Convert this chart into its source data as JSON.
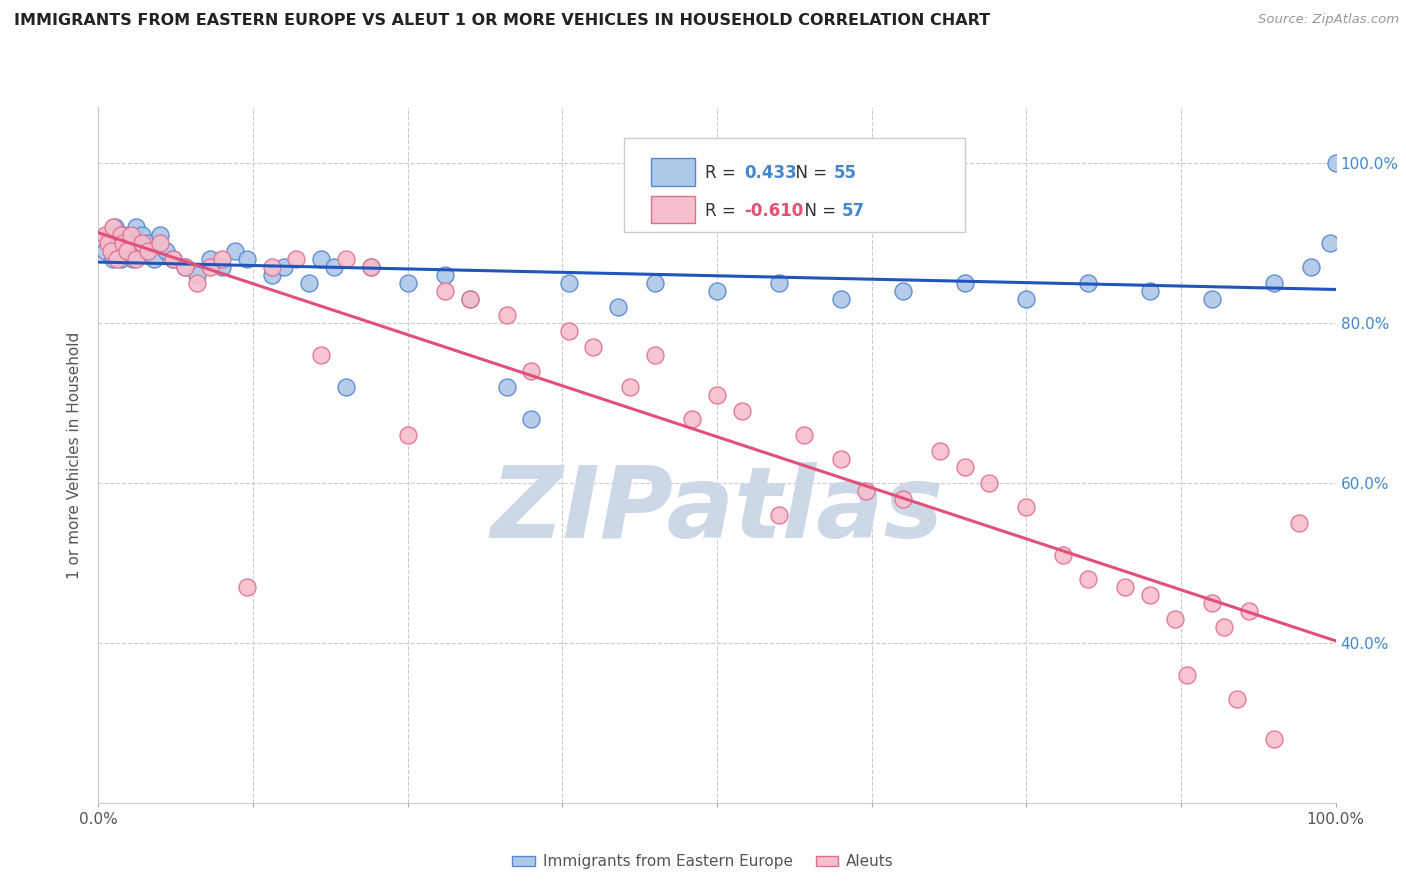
{
  "title": "IMMIGRANTS FROM EASTERN EUROPE VS ALEUT 1 OR MORE VEHICLES IN HOUSEHOLD CORRELATION CHART",
  "source": "Source: ZipAtlas.com",
  "ylabel": "1 or more Vehicles in Household",
  "legend_blue_r": "0.433",
  "legend_blue_n": "55",
  "legend_pink_r": "-0.610",
  "legend_pink_n": "57",
  "blue_color": "#adc8e8",
  "blue_edge_color": "#5588cc",
  "blue_line_color": "#2255bb",
  "pink_color": "#f5bfcc",
  "pink_edge_color": "#e07090",
  "pink_line_color": "#e0507a",
  "background_color": "#ffffff",
  "watermark_color": "#ccd8e8",
  "right_yticks": [
    40,
    60,
    80,
    100
  ],
  "right_ytick_labels": [
    "40.0%",
    "60.0%",
    "80.0%",
    "100.0%"
  ],
  "ylim_min": 20,
  "ylim_max": 107,
  "blue_x": [
    0.5,
    0.8,
    1.0,
    1.2,
    1.3,
    1.5,
    1.7,
    1.8,
    2.0,
    2.2,
    2.5,
    2.8,
    3.0,
    3.2,
    3.5,
    3.8,
    4.0,
    4.5,
    5.0,
    5.5,
    6.0,
    7.0,
    8.0,
    9.0,
    10.0,
    11.0,
    12.0,
    14.0,
    15.0,
    17.0,
    18.0,
    19.0,
    20.0,
    22.0,
    25.0,
    28.0,
    30.0,
    33.0,
    35.0,
    38.0,
    42.0,
    45.0,
    50.0,
    55.0,
    60.0,
    65.0,
    70.0,
    75.0,
    80.0,
    85.0,
    90.0,
    95.0,
    98.0,
    99.5,
    100.0
  ],
  "blue_y": [
    89.0,
    91.0,
    90.0,
    88.0,
    92.0,
    91.0,
    90.0,
    88.0,
    91.0,
    89.0,
    90.0,
    88.0,
    92.0,
    90.0,
    91.0,
    89.0,
    90.0,
    88.0,
    91.0,
    89.0,
    88.0,
    87.0,
    86.0,
    88.0,
    87.0,
    89.0,
    88.0,
    86.0,
    87.0,
    85.0,
    88.0,
    87.0,
    72.0,
    87.0,
    85.0,
    86.0,
    83.0,
    72.0,
    68.0,
    85.0,
    82.0,
    85.0,
    84.0,
    85.0,
    83.0,
    84.0,
    85.0,
    83.0,
    85.0,
    84.0,
    83.0,
    85.0,
    87.0,
    90.0,
    100.0
  ],
  "pink_x": [
    0.5,
    0.8,
    1.0,
    1.2,
    1.5,
    1.8,
    2.0,
    2.3,
    2.6,
    3.0,
    3.5,
    4.0,
    5.0,
    6.0,
    7.0,
    8.0,
    9.0,
    10.0,
    12.0,
    14.0,
    16.0,
    18.0,
    20.0,
    22.0,
    25.0,
    28.0,
    30.0,
    33.0,
    35.0,
    38.0,
    40.0,
    43.0,
    45.0,
    48.0,
    50.0,
    52.0,
    55.0,
    57.0,
    60.0,
    62.0,
    65.0,
    68.0,
    70.0,
    72.0,
    75.0,
    78.0,
    80.0,
    83.0,
    85.0,
    87.0,
    88.0,
    90.0,
    91.0,
    92.0,
    93.0,
    95.0,
    97.0
  ],
  "pink_y": [
    91.0,
    90.0,
    89.0,
    92.0,
    88.0,
    91.0,
    90.0,
    89.0,
    91.0,
    88.0,
    90.0,
    89.0,
    90.0,
    88.0,
    87.0,
    85.0,
    87.0,
    88.0,
    47.0,
    87.0,
    88.0,
    76.0,
    88.0,
    87.0,
    66.0,
    84.0,
    83.0,
    81.0,
    74.0,
    79.0,
    77.0,
    72.0,
    76.0,
    68.0,
    71.0,
    69.0,
    56.0,
    66.0,
    63.0,
    59.0,
    58.0,
    64.0,
    62.0,
    60.0,
    57.0,
    51.0,
    48.0,
    47.0,
    46.0,
    43.0,
    36.0,
    45.0,
    42.0,
    33.0,
    44.0,
    28.0,
    55.0
  ]
}
